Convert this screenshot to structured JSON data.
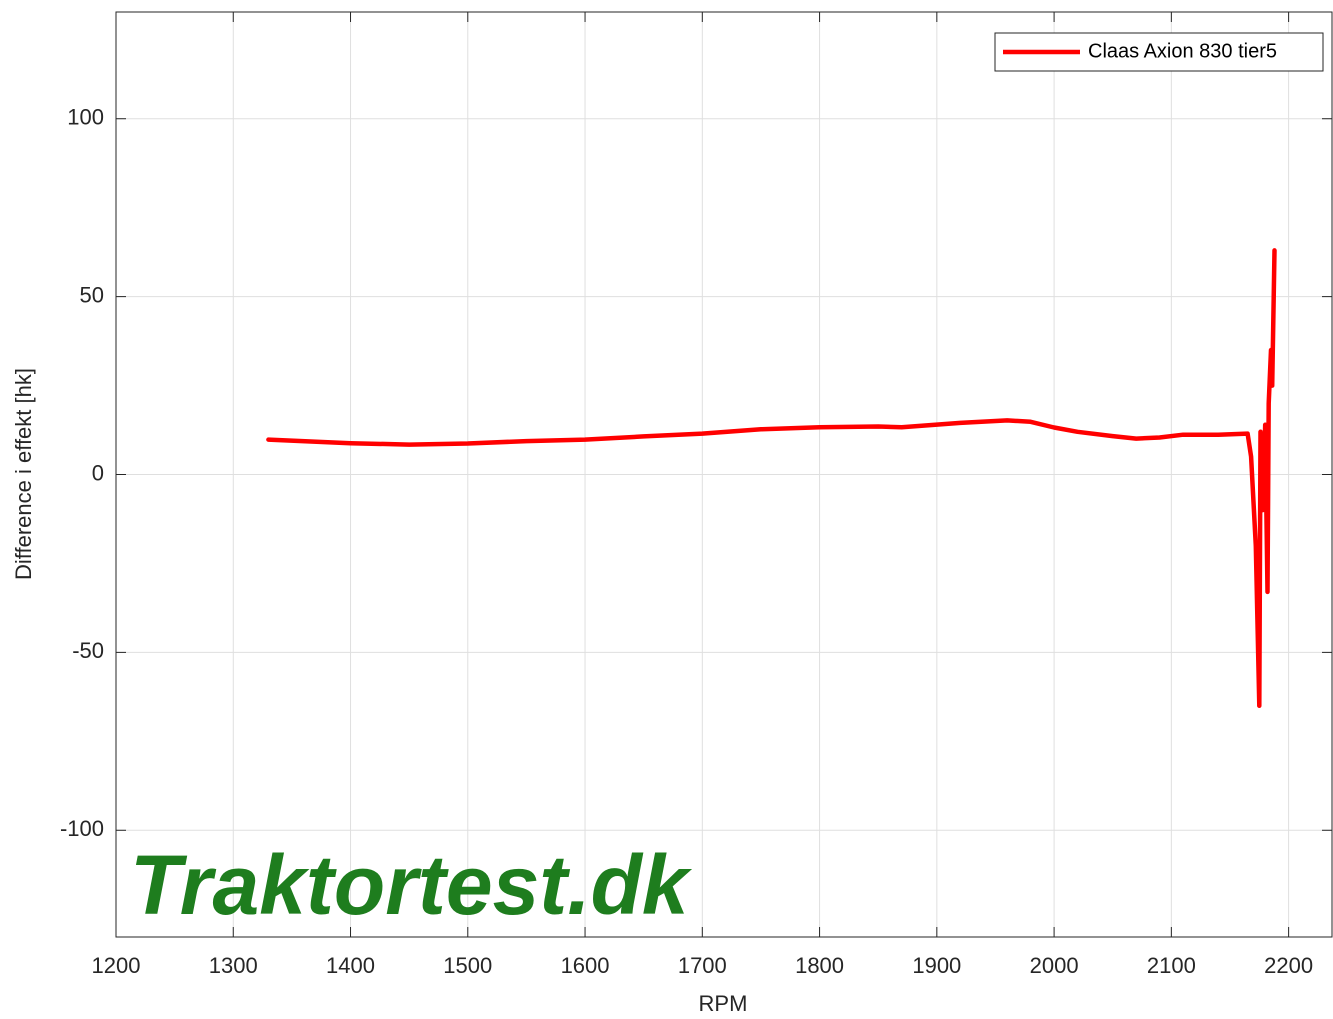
{
  "chart_data": {
    "type": "line",
    "xlabel": "RPM",
    "ylabel": "Difference i effekt [hk]",
    "watermark": "Traktortest.dk",
    "series": [
      {
        "name": "Claas Axion 830 tier5",
        "color": "#ff0000",
        "x": [
          1330,
          1400,
          1450,
          1500,
          1550,
          1600,
          1650,
          1700,
          1750,
          1800,
          1850,
          1870,
          1920,
          1960,
          1980,
          2000,
          2020,
          2050,
          2070,
          2090,
          2110,
          2140,
          2165,
          2168,
          2172,
          2175,
          2176,
          2178,
          2180,
          2182,
          2183,
          2185,
          2186,
          2188
        ],
        "values": [
          9.8,
          8.8,
          8.4,
          8.7,
          9.4,
          9.8,
          10.7,
          11.5,
          12.7,
          13.3,
          13.5,
          13.3,
          14.5,
          15.2,
          14.8,
          13.2,
          12.0,
          10.8,
          10.1,
          10.4,
          11.2,
          11.2,
          11.5,
          5,
          -20,
          -65,
          12,
          -10,
          14,
          -33,
          20,
          35,
          25,
          63
        ]
      }
    ],
    "xlim": [
      1200,
      2237
    ],
    "ylim": [
      -130,
      130
    ],
    "xticks": [
      1200,
      1300,
      1400,
      1500,
      1600,
      1700,
      1800,
      1900,
      2000,
      2100,
      2200
    ],
    "yticks": [
      -100,
      -50,
      0,
      50,
      100
    ],
    "grid": true,
    "legend": "northeast"
  }
}
